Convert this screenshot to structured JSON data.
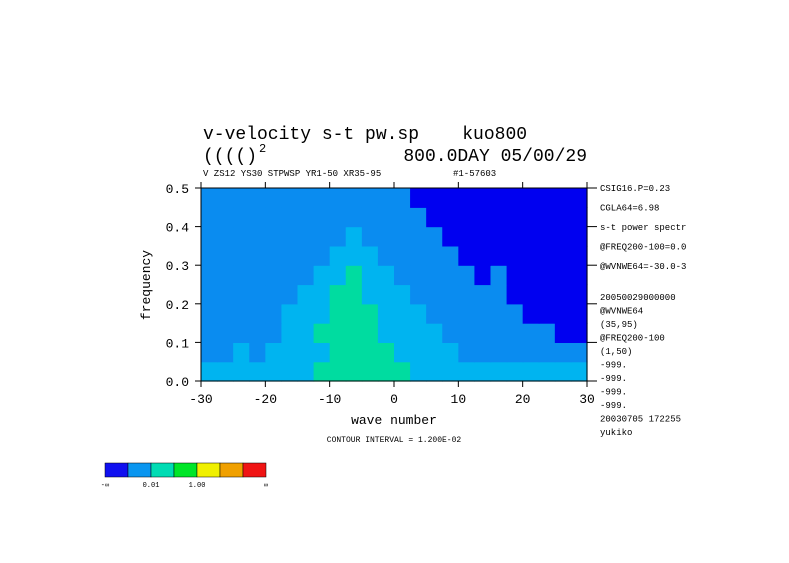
{
  "chart_data": {
    "type": "contour",
    "title": "v-velocity s-t pw.sp    kuo800",
    "subtitle_left": "(((()",
    "subtitle_sup": "2",
    "subtitle_right": "800.0DAY 05/00/29",
    "header": "V ZS12 YS30 STPWSP YR1-50 XR35-95",
    "header_right": "#1-57603",
    "xlabel": "wave number",
    "ylabel": "frequency",
    "footer": "CONTOUR INTERVAL = 1.200E-02",
    "xlim": [
      -30,
      30
    ],
    "ylim": [
      0,
      0.5
    ],
    "xticks": [
      -30,
      -20,
      -10,
      0,
      10,
      20,
      30
    ],
    "yticks": [
      {
        "value": 0,
        "label": "0.0"
      },
      0.1,
      0.2,
      0.3,
      0.4,
      0.5
    ],
    "colors": [
      "#0000f0",
      "#0a8cf0",
      "#00b4f0",
      "#00dca0"
    ],
    "z": [
      [
        2,
        2,
        2,
        2,
        2,
        2,
        2,
        3,
        3,
        3,
        3,
        3,
        3,
        2,
        2,
        2,
        2,
        2,
        2,
        2,
        2,
        2,
        2,
        2
      ],
      [
        1,
        1,
        2,
        1,
        2,
        2,
        2,
        2,
        3,
        3,
        3,
        3,
        2,
        2,
        2,
        2,
        1,
        1,
        1,
        1,
        1,
        1,
        1,
        1
      ],
      [
        1,
        1,
        1,
        1,
        1,
        2,
        2,
        3,
        3,
        3,
        3,
        2,
        2,
        2,
        2,
        1,
        1,
        1,
        1,
        1,
        1,
        1,
        0,
        0
      ],
      [
        1,
        1,
        1,
        1,
        1,
        2,
        2,
        2,
        3,
        3,
        3,
        2,
        2,
        2,
        1,
        1,
        1,
        1,
        1,
        1,
        0,
        0,
        0,
        0
      ],
      [
        1,
        1,
        1,
        1,
        1,
        1,
        2,
        2,
        3,
        3,
        2,
        2,
        2,
        1,
        1,
        1,
        1,
        1,
        1,
        0,
        0,
        0,
        0,
        0
      ],
      [
        1,
        1,
        1,
        1,
        1,
        1,
        1,
        2,
        2,
        3,
        2,
        2,
        1,
        1,
        1,
        1,
        1,
        0,
        1,
        0,
        0,
        0,
        0,
        0
      ],
      [
        1,
        1,
        1,
        1,
        1,
        1,
        1,
        1,
        2,
        2,
        2,
        1,
        1,
        1,
        1,
        1,
        0,
        0,
        0,
        0,
        0,
        0,
        0,
        0
      ],
      [
        1,
        1,
        1,
        1,
        1,
        1,
        1,
        1,
        1,
        2,
        1,
        1,
        1,
        1,
        1,
        0,
        0,
        0,
        0,
        0,
        0,
        0,
        0,
        0
      ],
      [
        1,
        1,
        1,
        1,
        1,
        1,
        1,
        1,
        1,
        1,
        1,
        1,
        1,
        1,
        0,
        0,
        0,
        0,
        0,
        0,
        0,
        0,
        0,
        0
      ],
      [
        1,
        1,
        1,
        1,
        1,
        1,
        1,
        1,
        1,
        1,
        1,
        1,
        1,
        0,
        0,
        0,
        0,
        0,
        0,
        0,
        0,
        0,
        0,
        0
      ]
    ],
    "notes": [
      "CSIG16.P=0.23",
      "CGLA64=6.98",
      "s-t power spectr",
      "@FREQ200-100=0.0",
      "@WVNWE64=-30.0-3",
      "20050029000000",
      "@WVNWE64",
      "(35,95)",
      "@FREQ200-100",
      "(1,50)",
      "-999.",
      "-999.",
      "-999.",
      "-999.",
      "20030705 172255",
      "yukiko"
    ],
    "colorbar": {
      "colors": [
        "#1010f0",
        "#0a96f0",
        "#00dcb4",
        "#00e628",
        "#f0f000",
        "#f0a000",
        "#f01414"
      ],
      "labels": [
        "-∞",
        "0.01",
        "1.00",
        "∞"
      ]
    }
  }
}
